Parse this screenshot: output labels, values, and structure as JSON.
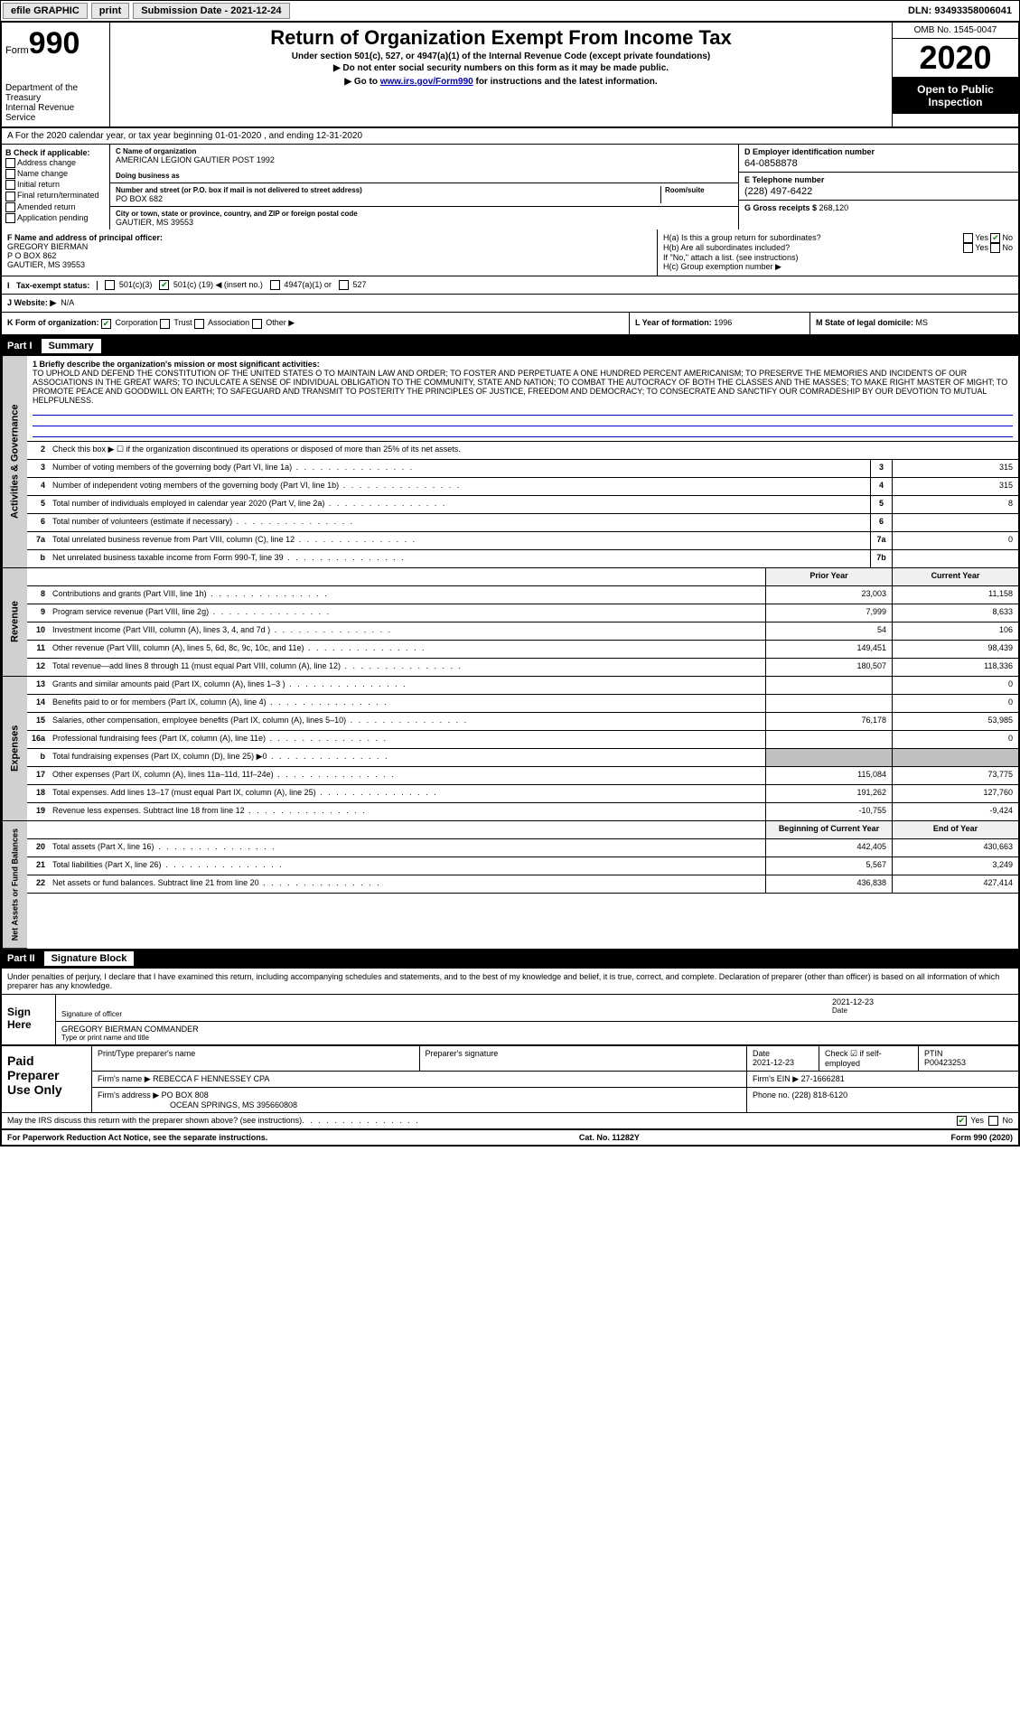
{
  "topbar": {
    "efile": "efile GRAPHIC",
    "print": "print",
    "sub_label": "Submission Date - ",
    "sub_date": "2021-12-24",
    "dln_label": "DLN: ",
    "dln": "93493358006041"
  },
  "header": {
    "form_prefix": "Form",
    "form_num": "990",
    "dept1": "Department of the Treasury",
    "dept2": "Internal Revenue Service",
    "title": "Return of Organization Exempt From Income Tax",
    "sub1": "Under section 501(c), 527, or 4947(a)(1) of the Internal Revenue Code (except private foundations)",
    "sub2": "▶ Do not enter social security numbers on this form as it may be made public.",
    "go_prefix": "▶ Go to ",
    "go_link": "www.irs.gov/Form990",
    "go_suffix": " for instructions and the latest information.",
    "omb": "OMB No. 1545-0047",
    "year": "2020",
    "open1": "Open to Public",
    "open2": "Inspection"
  },
  "period": {
    "a": "A For the 2020 calendar year, or tax year beginning 01-01-2020   , and ending 12-31-2020"
  },
  "b": {
    "hdr": "B Check if applicable:",
    "opts": [
      "Address change",
      "Name change",
      "Initial return",
      "Final return/terminated",
      "Amended return",
      "Application pending"
    ]
  },
  "c": {
    "name_lbl": "C Name of organization",
    "name": "AMERICAN LEGION GAUTIER POST 1992",
    "dba_lbl": "Doing business as",
    "dba": "",
    "addr_lbl": "Number and street (or P.O. box if mail is not delivered to street address)",
    "room_lbl": "Room/suite",
    "addr": "PO BOX 682",
    "city_lbl": "City or town, state or province, country, and ZIP or foreign postal code",
    "city": "GAUTIER, MS  39553"
  },
  "d": {
    "ein_lbl": "D Employer identification number",
    "ein": "64-0858878",
    "tel_lbl": "E Telephone number",
    "tel": "(228) 497-6422",
    "gross_lbl": "G Gross receipts $ ",
    "gross": "268,120"
  },
  "f": {
    "lbl": "F  Name and address of principal officer:",
    "name": "GREGORY BIERMAN",
    "addr1": "P O BOX 862",
    "addr2": "GAUTIER, MS  39553"
  },
  "h": {
    "a": "H(a)  Is this a group return for subordinates?",
    "b": "H(b)  Are all subordinates included?",
    "note": "If \"No,\" attach a list. (see instructions)",
    "c": "H(c)  Group exemption number ▶",
    "yes": "Yes",
    "no": "No"
  },
  "i": {
    "lbl": "Tax-exempt status:",
    "o1": "501(c)(3)",
    "o2a": "501(c) (",
    "o2n": "19",
    "o2b": ") ◀ (insert no.)",
    "o3": "4947(a)(1) or",
    "o4": "527"
  },
  "j": {
    "lbl": "J   Website: ▶",
    "val": "N/A"
  },
  "k": {
    "lbl": "K Form of organization:",
    "o1": "Corporation",
    "o2": "Trust",
    "o3": "Association",
    "o4": "Other ▶"
  },
  "l": {
    "lbl": "L Year of formation: ",
    "val": "1996"
  },
  "m": {
    "lbl": "M State of legal domicile: ",
    "val": "MS"
  },
  "part1": {
    "hdr_num": "Part I",
    "hdr_title": "Summary",
    "tab1": "Activities & Governance",
    "tab2": "Revenue",
    "tab3": "Expenses",
    "tab4": "Net Assets or Fund Balances",
    "l1_lbl": "1  Briefly describe the organization's mission or most significant activities:",
    "l1_text": "TO UPHOLD AND DEFEND THE CONSTITUTION OF THE UNITED STATES O TO MAINTAIN LAW AND ORDER; TO FOSTER AND PERPETUATE A ONE HUNDRED PERCENT AMERICANISM; TO PRESERVE THE MEMORIES AND INCIDENTS OF OUR ASSOCIATIONS IN THE GREAT WARS; TO INCULCATE A SENSE OF INDIVIDUAL OBLIGATION TO THE COMMUNITY, STATE AND NATION; TO COMBAT THE AUTOCRACY OF BOTH THE CLASSES AND THE MASSES; TO MAKE RIGHT MASTER OF MIGHT; TO PROMOTE PEACE AND GOODWILL ON EARTH; TO SAFEGUARD AND TRANSMIT TO POSTERITY THE PRINCIPLES OF JUSTICE, FREEDOM AND DEMOCRACY; TO CONSECRATE AND SANCTIFY OUR COMRADESHIP BY OUR DEVOTION TO MUTUAL HELPFULNESS.",
    "l2": "Check this box ▶ ☐ if the organization discontinued its operations or disposed of more than 25% of its net assets.",
    "prior_hdr": "Prior Year",
    "curr_hdr": "Current Year",
    "begin_hdr": "Beginning of Current Year",
    "end_hdr": "End of Year",
    "rows_gov": [
      {
        "n": "3",
        "d": "Number of voting members of the governing body (Part VI, line 1a)",
        "c": "3",
        "v": "315"
      },
      {
        "n": "4",
        "d": "Number of independent voting members of the governing body (Part VI, line 1b)",
        "c": "4",
        "v": "315"
      },
      {
        "n": "5",
        "d": "Total number of individuals employed in calendar year 2020 (Part V, line 2a)",
        "c": "5",
        "v": "8"
      },
      {
        "n": "6",
        "d": "Total number of volunteers (estimate if necessary)",
        "c": "6",
        "v": ""
      },
      {
        "n": "7a",
        "d": "Total unrelated business revenue from Part VIII, column (C), line 12",
        "c": "7a",
        "v": "0"
      },
      {
        "n": "b",
        "d": "Net unrelated business taxable income from Form 990-T, line 39",
        "c": "7b",
        "v": ""
      }
    ],
    "rows_rev": [
      {
        "n": "8",
        "d": "Contributions and grants (Part VIII, line 1h)",
        "p": "23,003",
        "c": "11,158"
      },
      {
        "n": "9",
        "d": "Program service revenue (Part VIII, line 2g)",
        "p": "7,999",
        "c": "8,633"
      },
      {
        "n": "10",
        "d": "Investment income (Part VIII, column (A), lines 3, 4, and 7d )",
        "p": "54",
        "c": "106"
      },
      {
        "n": "11",
        "d": "Other revenue (Part VIII, column (A), lines 5, 6d, 8c, 9c, 10c, and 11e)",
        "p": "149,451",
        "c": "98,439"
      },
      {
        "n": "12",
        "d": "Total revenue—add lines 8 through 11 (must equal Part VIII, column (A), line 12)",
        "p": "180,507",
        "c": "118,336"
      }
    ],
    "rows_exp": [
      {
        "n": "13",
        "d": "Grants and similar amounts paid (Part IX, column (A), lines 1–3 )",
        "p": "",
        "c": "0"
      },
      {
        "n": "14",
        "d": "Benefits paid to or for members (Part IX, column (A), line 4)",
        "p": "",
        "c": "0"
      },
      {
        "n": "15",
        "d": "Salaries, other compensation, employee benefits (Part IX, column (A), lines 5–10)",
        "p": "76,178",
        "c": "53,985"
      },
      {
        "n": "16a",
        "d": "Professional fundraising fees (Part IX, column (A), line 11e)",
        "p": "",
        "c": "0"
      },
      {
        "n": "b",
        "d": "Total fundraising expenses (Part IX, column (D), line 25) ▶0",
        "p": "grey",
        "c": "grey"
      },
      {
        "n": "17",
        "d": "Other expenses (Part IX, column (A), lines 11a–11d, 11f–24e)",
        "p": "115,084",
        "c": "73,775"
      },
      {
        "n": "18",
        "d": "Total expenses. Add lines 13–17 (must equal Part IX, column (A), line 25)",
        "p": "191,262",
        "c": "127,760"
      },
      {
        "n": "19",
        "d": "Revenue less expenses. Subtract line 18 from line 12",
        "p": "-10,755",
        "c": "-9,424"
      }
    ],
    "rows_net": [
      {
        "n": "20",
        "d": "Total assets (Part X, line 16)",
        "p": "442,405",
        "c": "430,663"
      },
      {
        "n": "21",
        "d": "Total liabilities (Part X, line 26)",
        "p": "5,567",
        "c": "3,249"
      },
      {
        "n": "22",
        "d": "Net assets or fund balances. Subtract line 21 from line 20",
        "p": "436,838",
        "c": "427,414"
      }
    ]
  },
  "part2": {
    "hdr_num": "Part II",
    "hdr_title": "Signature Block",
    "intro": "Under penalties of perjury, I declare that I have examined this return, including accompanying schedules and statements, and to the best of my knowledge and belief, it is true, correct, and complete. Declaration of preparer (other than officer) is based on all information of which preparer has any knowledge.",
    "sign_here": "Sign Here",
    "sig_lbl": "Signature of officer",
    "date_lbl": "Date",
    "date": "2021-12-23",
    "officer": "GREGORY BIERMAN  COMMANDER",
    "type_lbl": "Type or print name and title",
    "paid": "Paid Preparer Use Only",
    "prep_name_lbl": "Print/Type preparer's name",
    "prep_sig_lbl": "Preparer's signature",
    "prep_date_lbl": "Date",
    "prep_date": "2021-12-23",
    "self_lbl": "Check ☑ if self-employed",
    "ptin_lbl": "PTIN",
    "ptin": "P00423253",
    "firm_name_lbl": "Firm's name    ▶",
    "firm_name": "REBECCA F HENNESSEY CPA",
    "firm_ein_lbl": "Firm's EIN ▶",
    "firm_ein": "27-1666281",
    "firm_addr_lbl": "Firm's address ▶",
    "firm_addr1": "PO BOX 808",
    "firm_addr2": "OCEAN SPRINGS, MS  395660808",
    "firm_phone_lbl": "Phone no. ",
    "firm_phone": "(228) 818-6120",
    "discuss": "May the IRS discuss this return with the preparer shown above? (see instructions)",
    "yes": "Yes",
    "no": "No"
  },
  "footer": {
    "pra": "For Paperwork Reduction Act Notice, see the separate instructions.",
    "cat": "Cat. No. 11282Y",
    "form": "Form 990 (2020)"
  }
}
